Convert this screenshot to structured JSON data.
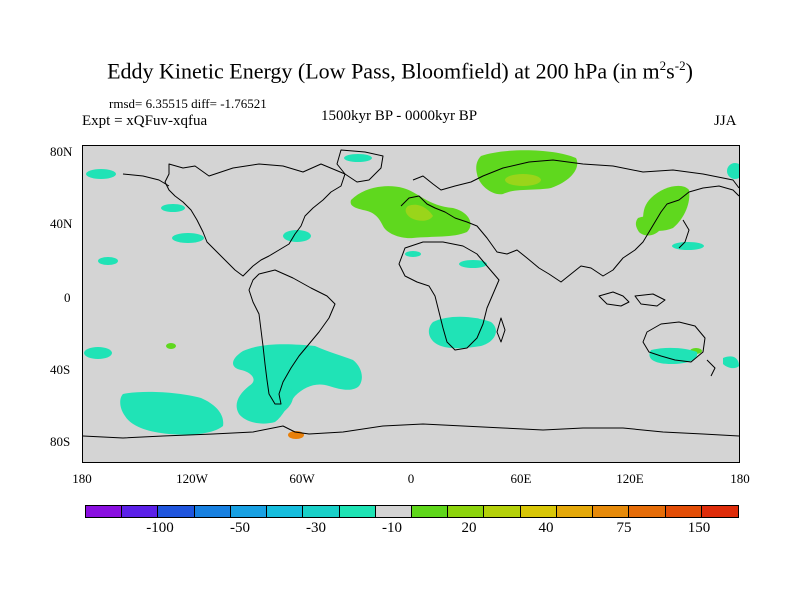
{
  "title": {
    "main": "Eddy Kinetic Energy (Low Pass, Bloomfield) at 200 hPa (in m",
    "sup1": "2",
    "mid": "s",
    "sup2": "-2",
    "end": ")"
  },
  "subtitles": {
    "stats": "rmsd= 6.35515 diff= -1.76521",
    "experiment": "Expt = xQFuv-xqfua",
    "period": "1500kyr BP - 0000kyr BP",
    "season": "JJA"
  },
  "axes": {
    "y_ticks": [
      "80N",
      "40N",
      "0",
      "40S",
      "80S"
    ],
    "x_ticks": [
      "180",
      "120W",
      "60W",
      "0",
      "60E",
      "120E",
      "180"
    ]
  },
  "colorbar": {
    "colors": [
      "#8a0fe0",
      "#5b20e8",
      "#1f55dd",
      "#1780e0",
      "#18a0e2",
      "#16bddd",
      "#19d0c8",
      "#1ee3b4",
      "#d3d3d3",
      "#5ed61a",
      "#8cd30c",
      "#b4d00a",
      "#d8c607",
      "#e4a80a",
      "#e68a0a",
      "#e56c08",
      "#e24d06",
      "#de2c0a"
    ],
    "labels": [
      "-100",
      "-50",
      "-30",
      "-10",
      "20",
      "40",
      "75",
      "150"
    ]
  },
  "colors": {
    "background": "#d4d4d4",
    "positive_green": "#5fd81e",
    "strong_green": "#9ad51a",
    "yellow": "#d8dc1c",
    "negative_teal": "#20e3b6",
    "orange": "#e8800a",
    "coast": "#000000"
  }
}
